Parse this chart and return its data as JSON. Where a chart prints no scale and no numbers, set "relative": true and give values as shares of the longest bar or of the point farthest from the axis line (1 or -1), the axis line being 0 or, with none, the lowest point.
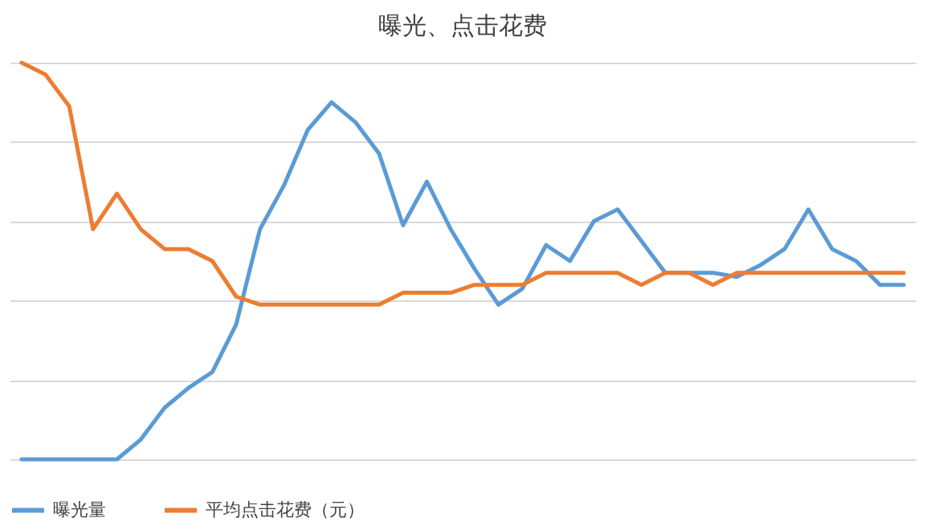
{
  "chart_data": {
    "type": "line",
    "title": "曝光、点击花费",
    "relative": true,
    "grid": "y",
    "legend": "bottom",
    "marker": "none",
    "line_style": "solid",
    "categories": [
      null,
      null,
      null,
      null,
      null,
      null,
      null,
      null,
      null,
      null,
      null,
      null,
      null,
      null,
      null,
      null,
      null,
      null,
      null,
      null,
      null,
      null,
      null,
      null,
      null,
      null,
      null,
      null,
      null,
      null,
      null,
      null,
      null,
      null,
      null,
      null,
      null,
      null
    ],
    "series": [
      {
        "name": "曝光量",
        "color": "#5b9bd5",
        "values": [
          0,
          0,
          0,
          0,
          0,
          0.05,
          0.13,
          0.18,
          0.22,
          0.34,
          0.58,
          0.69,
          0.83,
          0.9,
          0.85,
          0.77,
          0.59,
          0.7,
          0.58,
          0.48,
          0.39,
          0.43,
          0.54,
          0.5,
          0.6,
          0.63,
          0.55,
          0.47,
          0.47,
          0.47,
          0.46,
          0.49,
          0.53,
          0.63,
          0.53,
          0.5,
          0.44,
          0.44
        ]
      },
      {
        "name": "平均点击花费（元）",
        "color": "#ed7d31",
        "values": [
          1,
          0.97,
          0.89,
          0.58,
          0.67,
          0.58,
          0.53,
          0.53,
          0.5,
          0.41,
          0.39,
          0.39,
          0.39,
          0.39,
          0.39,
          0.39,
          0.42,
          0.42,
          0.42,
          0.44,
          0.44,
          0.44,
          0.47,
          0.47,
          0.47,
          0.47,
          0.44,
          0.47,
          0.47,
          0.44,
          0.47,
          0.47,
          0.47,
          0.47,
          0.47,
          0.47,
          0.47,
          0.47
        ]
      }
    ]
  }
}
